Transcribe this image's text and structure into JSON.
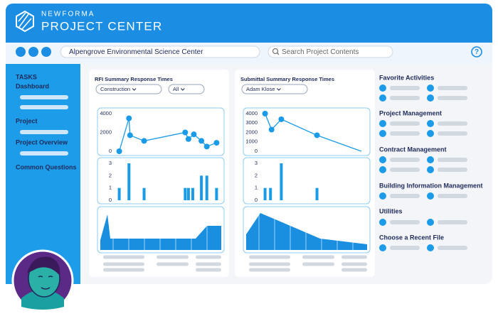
{
  "header": {
    "brand": "NEWFORMA",
    "product": "PROJECT CENTER"
  },
  "toolbar": {
    "project": "Alpengrove Environmental Science Center",
    "search_placeholder": "Search Project Contents",
    "help": "?"
  },
  "sidebar": {
    "heading": "TASKS",
    "items": [
      "Dashboard",
      "Project",
      "Project Overview",
      "Common Questions"
    ]
  },
  "panels": [
    {
      "title": "RFI Summary Response Times",
      "filters": [
        "Construction",
        "All"
      ],
      "line": {
        "x": [
          5,
          14,
          15,
          28,
          66,
          69,
          74,
          81,
          86,
          95
        ],
        "values": [
          0,
          3500,
          1700,
          1100,
          2000,
          1300,
          1800,
          1100,
          500,
          900
        ],
        "xlim": [
          0,
          100
        ],
        "ylim": [
          0,
          4000
        ],
        "yticks": [
          0,
          2000,
          4000
        ],
        "color": "#1a9be8"
      },
      "bars": {
        "x": [
          5,
          14,
          28,
          66,
          69,
          73,
          81,
          86,
          95
        ],
        "values": [
          1,
          3,
          1,
          1,
          1,
          1,
          2,
          2,
          1
        ],
        "xlim": [
          0,
          100
        ],
        "ylim": [
          0,
          3
        ],
        "yticks": [
          0,
          1,
          2,
          3
        ],
        "color": "#1a9be8"
      }
    },
    {
      "title": "Submittal Summary Response Times",
      "filters": [
        "Adam Klose"
      ],
      "line": {
        "x": [
          5,
          11,
          20,
          53,
          94
        ],
        "values": [
          4000,
          2300,
          3400,
          1700,
          0
        ],
        "xlim": [
          0,
          100
        ],
        "ylim": [
          0,
          4000
        ],
        "yticks": [
          0,
          1000,
          2000,
          3000,
          4000
        ],
        "color": "#1a9be8"
      },
      "bars": {
        "x": [
          5,
          10,
          20,
          53
        ],
        "values": [
          1,
          1,
          3,
          1
        ],
        "xlim": [
          0,
          100
        ],
        "ylim": [
          0,
          3
        ],
        "yticks": [
          0,
          1,
          2,
          3
        ],
        "color": "#1a9be8"
      }
    }
  ],
  "activities": [
    "Favorite Activities",
    "Project Management",
    "Contract Management",
    "Building Information Management",
    "Utilities",
    "Choose a Recent File"
  ]
}
